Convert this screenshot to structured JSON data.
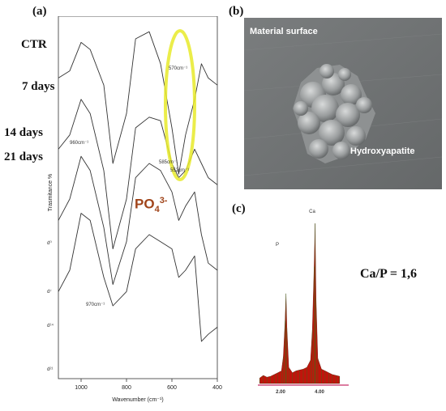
{
  "panel_a": {
    "letter": "(a)",
    "rows": [
      "CTR",
      "7 days",
      "14 days",
      "21 days"
    ],
    "ylabel": "Trasmitance %",
    "xlabel": "Wavenumber (cm⁻¹)",
    "xticks": [
      "1000",
      "800",
      "600",
      "400"
    ],
    "annotations": [
      "570cm⁻¹",
      "960cm⁻¹",
      "585cm⁻¹",
      "552cm⁻¹",
      "970cm⁻¹"
    ],
    "curve_tags": [
      "d⁰",
      "d⁷",
      "d¹⁴",
      "d²¹"
    ],
    "phosphate_base": "PO",
    "phosphate_sub": "4",
    "phosphate_sup": "3-",
    "highlight_color": "#e8ea2a",
    "label_color": "#a0441a"
  },
  "panel_b": {
    "letter": "(b)",
    "label_top": "Material surface",
    "label_particle": "Hydroxyapatite"
  },
  "panel_c": {
    "letter": "(c)",
    "ratio": "Ca/P = 1,6",
    "peak_labels": [
      "P",
      "Ca"
    ],
    "xticks": [
      "2.00",
      "4.00"
    ],
    "spectrum_color": "#c0140c"
  },
  "chart_data": [
    {
      "type": "line",
      "title": "",
      "xlabel": "Wavenumber (cm⁻¹)",
      "ylabel": "Trasmitance %",
      "xlim": [
        1100,
        400
      ],
      "x_reversed": true,
      "series": [
        {
          "name": "CTR",
          "x": [
            1100,
            1050,
            1000,
            960,
            900,
            860,
            800,
            760,
            700,
            650,
            600,
            570,
            540,
            500,
            470,
            440,
            400
          ],
          "y": [
            84,
            86,
            94,
            92,
            82,
            60,
            74,
            95,
            97,
            88,
            70,
            57,
            68,
            78,
            88,
            84,
            82
          ]
        },
        {
          "name": "7 days",
          "x": [
            1100,
            1050,
            1000,
            960,
            900,
            860,
            800,
            760,
            700,
            650,
            600,
            570,
            540,
            500,
            470,
            440,
            400
          ],
          "y": [
            64,
            68,
            78,
            74,
            58,
            36,
            50,
            70,
            73,
            72,
            60,
            56,
            58,
            64,
            60,
            56,
            54
          ]
        },
        {
          "name": "14 days",
          "x": [
            1100,
            1050,
            1000,
            960,
            900,
            860,
            800,
            760,
            700,
            650,
            600,
            570,
            540,
            500,
            470,
            440,
            400
          ],
          "y": [
            44,
            50,
            62,
            58,
            42,
            26,
            38,
            56,
            60,
            58,
            52,
            44,
            48,
            52,
            40,
            32,
            30
          ]
        },
        {
          "name": "21 days",
          "x": [
            1100,
            1050,
            1000,
            960,
            900,
            860,
            800,
            760,
            700,
            650,
            600,
            570,
            540,
            500,
            470,
            440,
            400
          ],
          "y": [
            24,
            30,
            46,
            44,
            28,
            20,
            24,
            36,
            40,
            38,
            36,
            28,
            30,
            34,
            10,
            12,
            14
          ]
        }
      ]
    },
    {
      "type": "bar",
      "title": "",
      "xlabel": "",
      "ylabel": "",
      "xlim": [
        0.5,
        5.5
      ],
      "series": [
        {
          "name": "",
          "x": [
            0.6,
            0.8,
            1.0,
            1.2,
            1.4,
            1.6,
            1.8,
            1.9,
            2.0,
            2.05,
            2.1,
            2.2,
            2.4,
            2.6,
            2.8,
            3.0,
            3.2,
            3.4,
            3.5,
            3.6,
            3.65,
            3.7,
            3.8,
            4.0,
            4.2,
            4.4,
            4.6,
            4.8,
            5.0
          ],
          "y": [
            6,
            9,
            7,
            8,
            10,
            12,
            14,
            30,
            70,
            100,
            62,
            18,
            12,
            14,
            15,
            16,
            18,
            26,
            60,
            130,
            178,
            95,
            28,
            16,
            14,
            12,
            10,
            9,
            8
          ]
        }
      ],
      "peaks": [
        {
          "label": "P",
          "x": 2.05
        },
        {
          "label": "Ca",
          "x": 3.65
        }
      ]
    }
  ]
}
